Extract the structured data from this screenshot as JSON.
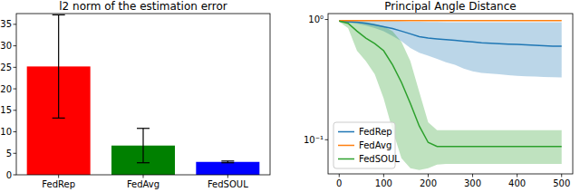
{
  "chart_data": [
    {
      "type": "bar",
      "title": "l2 norm of the estimation error",
      "categories": [
        "FedRep",
        "FedAvg",
        "FedSOUL"
      ],
      "values": [
        25.2,
        6.8,
        3.0
      ],
      "errors": [
        12,
        4,
        0.2
      ],
      "colors": [
        "#ff0000",
        "#008000",
        "#0000ff"
      ],
      "ylim": [
        0,
        37.5
      ],
      "yticks": [
        0,
        5,
        10,
        15,
        20,
        25,
        30,
        35
      ],
      "grid": false
    },
    {
      "type": "line",
      "title": "Principal Angle Distance",
      "log": "y",
      "grid": false,
      "legend": "lower left",
      "x": [
        0,
        20,
        40,
        60,
        80,
        100,
        120,
        140,
        160,
        180,
        200,
        220,
        240,
        260,
        280,
        300,
        320,
        340,
        360,
        380,
        400,
        420,
        440,
        460,
        480,
        500
      ],
      "xlim": [
        -25,
        525
      ],
      "xticks": [
        0,
        100,
        200,
        300,
        400,
        500
      ],
      "ylim": [
        0.052,
        1.12
      ],
      "yticks": [
        {
          "value": 0.1,
          "label": "10⁻¹"
        },
        {
          "value": 1,
          "label": "10⁰"
        }
      ],
      "series": [
        {
          "name": "FedRep",
          "color": "#1f77b4",
          "values": [
            0.97,
            0.96,
            0.95,
            0.93,
            0.9,
            0.87,
            0.84,
            0.8,
            0.76,
            0.72,
            0.7,
            0.69,
            0.68,
            0.67,
            0.66,
            0.65,
            0.64,
            0.635,
            0.63,
            0.625,
            0.62,
            0.615,
            0.61,
            0.605,
            0.6,
            0.6
          ],
          "lower": [
            0.96,
            0.94,
            0.92,
            0.89,
            0.85,
            0.8,
            0.73,
            0.66,
            0.58,
            0.53,
            0.5,
            0.47,
            0.44,
            0.42,
            0.39,
            0.37,
            0.36,
            0.355,
            0.35,
            0.345,
            0.34,
            0.337,
            0.335,
            0.333,
            0.331,
            0.33
          ],
          "upper": [
            0.98,
            0.98,
            0.98,
            0.975,
            0.975,
            0.97,
            0.97,
            0.965,
            0.96,
            0.96,
            0.955,
            0.955,
            0.95,
            0.95,
            0.95,
            0.95,
            0.95,
            0.95,
            0.95,
            0.95,
            0.95,
            0.95,
            0.95,
            0.95,
            0.95,
            0.95
          ]
        },
        {
          "name": "FedAvg",
          "color": "#ff7f0e",
          "values": [
            0.98,
            0.98,
            0.98,
            0.98,
            0.98,
            0.98,
            0.98,
            0.98,
            0.98,
            0.98,
            0.98,
            0.98,
            0.98,
            0.98,
            0.98,
            0.98,
            0.98,
            0.98,
            0.98,
            0.98,
            0.98,
            0.98,
            0.98,
            0.98,
            0.98,
            0.98
          ],
          "lower": [
            0.975,
            0.975,
            0.975,
            0.975,
            0.975,
            0.975,
            0.975,
            0.975,
            0.975,
            0.975,
            0.975,
            0.975,
            0.975,
            0.975,
            0.975,
            0.975,
            0.975,
            0.975,
            0.975,
            0.975,
            0.975,
            0.975,
            0.975,
            0.975,
            0.975,
            0.975
          ],
          "upper": [
            0.985,
            0.985,
            0.985,
            0.985,
            0.985,
            0.985,
            0.985,
            0.985,
            0.985,
            0.985,
            0.985,
            0.985,
            0.985,
            0.985,
            0.985,
            0.985,
            0.985,
            0.985,
            0.985,
            0.985,
            0.985,
            0.985,
            0.985,
            0.985,
            0.985,
            0.985
          ]
        },
        {
          "name": "FedSOUL",
          "color": "#2ca02c",
          "values": [
            0.97,
            0.93,
            0.8,
            0.7,
            0.63,
            0.55,
            0.42,
            0.3,
            0.2,
            0.13,
            0.095,
            0.088,
            0.088,
            0.088,
            0.088,
            0.088,
            0.088,
            0.088,
            0.088,
            0.088,
            0.088,
            0.088,
            0.088,
            0.088,
            0.088,
            0.088
          ],
          "lower": [
            0.96,
            0.85,
            0.55,
            0.45,
            0.35,
            0.22,
            0.12,
            0.07,
            0.058,
            0.056,
            0.058,
            0.062,
            0.063,
            0.063,
            0.063,
            0.063,
            0.063,
            0.063,
            0.063,
            0.063,
            0.063,
            0.063,
            0.063,
            0.063,
            0.063,
            0.063
          ],
          "upper": [
            0.98,
            0.97,
            0.96,
            0.95,
            0.92,
            0.88,
            0.8,
            0.65,
            0.45,
            0.25,
            0.14,
            0.12,
            0.12,
            0.12,
            0.12,
            0.12,
            0.12,
            0.12,
            0.12,
            0.12,
            0.12,
            0.12,
            0.12,
            0.12,
            0.12,
            0.12
          ]
        }
      ]
    }
  ]
}
